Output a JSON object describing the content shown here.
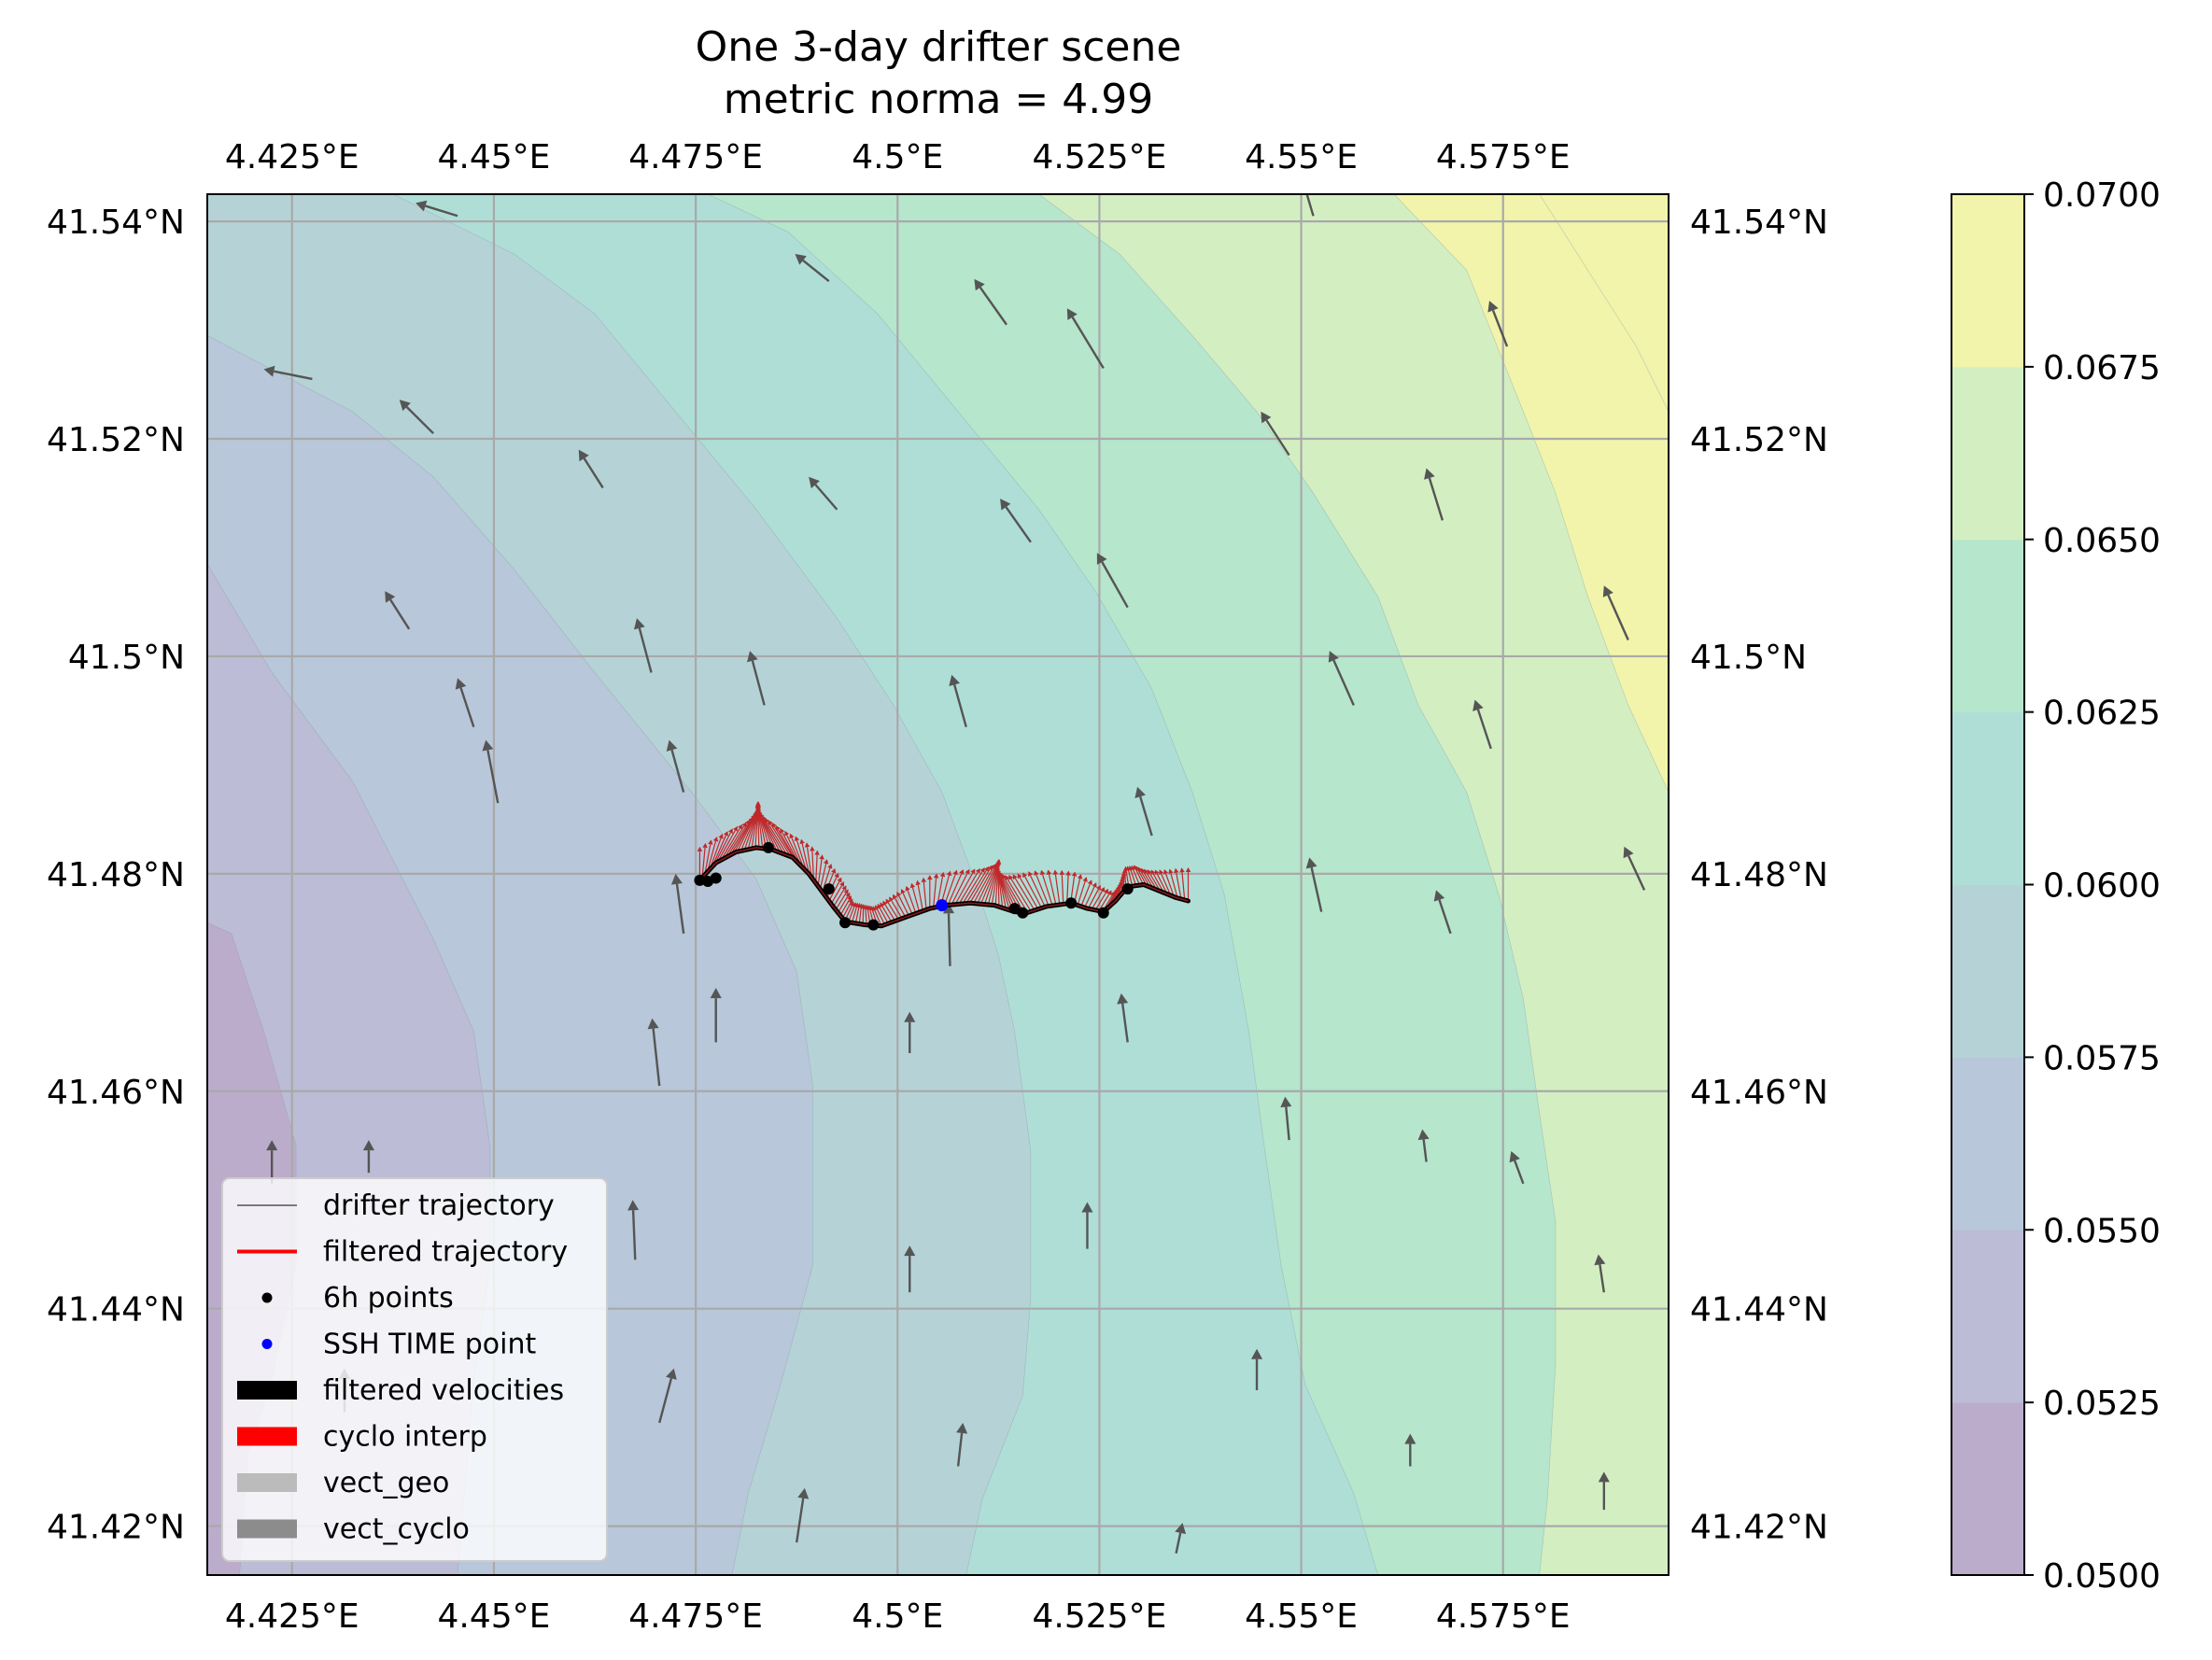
{
  "chart_data": {
    "type": "map",
    "title": "One 3-day drifter scene",
    "subtitle": "metric norma = 4.99",
    "xlim": [
      4.4145,
      4.5955
    ],
    "ylim": [
      41.4155,
      41.5425
    ],
    "lon_ticks": [
      4.425,
      4.45,
      4.475,
      4.5,
      4.525,
      4.55,
      4.575
    ],
    "lon_tick_labels": [
      "4.425°E",
      "4.45°E",
      "4.475°E",
      "4.5°E",
      "4.525°E",
      "4.55°E",
      "4.575°E"
    ],
    "lat_ticks": [
      41.42,
      41.44,
      41.46,
      41.48,
      41.5,
      41.52,
      41.54
    ],
    "lat_tick_labels": [
      "41.42°N",
      "41.44°N",
      "41.46°N",
      "41.48°N",
      "41.5°N",
      "41.52°N",
      "41.54°N"
    ],
    "grid": true,
    "colorbar": {
      "levels": [
        0.05,
        0.0525,
        0.055,
        0.0575,
        0.06,
        0.0625,
        0.065,
        0.0675,
        0.07
      ],
      "tick_labels": [
        "0.0500",
        "0.0525",
        "0.0550",
        "0.0575",
        "0.0600",
        "0.0625",
        "0.0650",
        "0.0675",
        "0.0700"
      ],
      "colors": [
        "#bcaccc",
        "#bcbcd6",
        "#b8c7d9",
        "#b5d3d6",
        "#afded7",
        "#b6e6cc",
        "#d3efc2",
        "#f1f4aa"
      ]
    },
    "contour_bands": [
      {
        "level": 1,
        "boundary": [
          [
            4.4145,
            41.4755
          ],
          [
            4.4175,
            41.4745
          ],
          [
            4.4215,
            41.4655
          ],
          [
            4.4255,
            41.455
          ],
          [
            4.4255,
            41.444
          ],
          [
            4.4225,
            41.4335
          ],
          [
            4.4195,
            41.4265
          ],
          [
            4.4185,
            41.4155
          ]
        ]
      },
      {
        "level": 2,
        "boundary": [
          [
            4.4145,
            41.5085
          ],
          [
            4.4225,
            41.4985
          ],
          [
            4.4325,
            41.4885
          ],
          [
            4.4425,
            41.474
          ],
          [
            4.4475,
            41.4655
          ],
          [
            4.4495,
            41.455
          ],
          [
            4.4495,
            41.444
          ],
          [
            4.4475,
            41.4335
          ],
          [
            4.4455,
            41.4155
          ]
        ]
      },
      {
        "level": 3,
        "boundary": [
          [
            4.4145,
            41.5295
          ],
          [
            4.4325,
            41.5225
          ],
          [
            4.4425,
            41.5165
          ],
          [
            4.4525,
            41.508
          ],
          [
            4.4625,
            41.4985
          ],
          [
            4.4745,
            41.4875
          ],
          [
            4.4825,
            41.4795
          ],
          [
            4.4875,
            41.471
          ],
          [
            4.4895,
            41.4605
          ],
          [
            4.4895,
            41.444
          ],
          [
            4.4855,
            41.433
          ],
          [
            4.4815,
            41.423
          ],
          [
            4.4795,
            41.4155
          ]
        ]
      },
      {
        "level": 4,
        "boundary": [
          [
            4.4375,
            41.5425
          ],
          [
            4.4525,
            41.537
          ],
          [
            4.4625,
            41.5315
          ],
          [
            4.4725,
            41.5225
          ],
          [
            4.4825,
            41.5135
          ],
          [
            4.4925,
            41.5035
          ],
          [
            4.4995,
            41.4955
          ],
          [
            4.5055,
            41.4875
          ],
          [
            4.5095,
            41.4795
          ],
          [
            4.5125,
            41.4725
          ],
          [
            4.5145,
            41.4655
          ],
          [
            4.5165,
            41.4545
          ],
          [
            4.5165,
            41.441
          ],
          [
            4.5155,
            41.432
          ],
          [
            4.5105,
            41.4225
          ],
          [
            4.5085,
            41.4155
          ]
        ]
      },
      {
        "level": 5,
        "boundary": [
          [
            4.4765,
            41.5425
          ],
          [
            4.4865,
            41.539
          ],
          [
            4.4975,
            41.5315
          ],
          [
            4.5075,
            41.5225
          ],
          [
            4.5175,
            41.5135
          ],
          [
            4.5245,
            41.506
          ],
          [
            4.5315,
            41.497
          ],
          [
            4.5365,
            41.4875
          ],
          [
            4.5405,
            41.478
          ],
          [
            4.5435,
            41.4655
          ],
          [
            4.5455,
            41.4545
          ],
          [
            4.5475,
            41.444
          ],
          [
            4.5505,
            41.433
          ],
          [
            4.5565,
            41.423
          ],
          [
            4.5595,
            41.4155
          ]
        ]
      },
      {
        "level": 6,
        "boundary": [
          [
            4.5175,
            41.5425
          ],
          [
            4.5275,
            41.537
          ],
          [
            4.5365,
            41.5295
          ],
          [
            4.5445,
            41.5225
          ],
          [
            4.5515,
            41.515
          ],
          [
            4.5595,
            41.5055
          ],
          [
            4.5645,
            41.4955
          ],
          [
            4.5705,
            41.4875
          ],
          [
            4.5745,
            41.478
          ],
          [
            4.5775,
            41.4685
          ],
          [
            4.5795,
            41.458
          ],
          [
            4.5815,
            41.448
          ],
          [
            4.5815,
            41.435
          ],
          [
            4.5805,
            41.4225
          ],
          [
            4.5795,
            41.4155
          ]
        ]
      },
      {
        "level": 7,
        "boundary": [
          [
            4.5615,
            41.5425
          ],
          [
            4.5705,
            41.5355
          ],
          [
            4.5775,
            41.5225
          ],
          [
            4.5815,
            41.515
          ],
          [
            4.5855,
            41.5055
          ],
          [
            4.5905,
            41.4955
          ],
          [
            4.5955,
            41.4875
          ]
        ]
      },
      {
        "level": 8,
        "boundary": [
          [
            4.5795,
            41.5425
          ],
          [
            4.5855,
            41.5355
          ],
          [
            4.5915,
            41.5285
          ],
          [
            4.5955,
            41.5225
          ]
        ]
      }
    ],
    "quiver": [
      [
        4.4275,
        41.5255,
        -0.006,
        0.0009
      ],
      [
        4.4425,
        41.5205,
        -0.0042,
        0.0031
      ],
      [
        4.4455,
        41.5405,
        -0.0052,
        0.0012
      ],
      [
        4.4395,
        41.5025,
        -0.003,
        0.0035
      ],
      [
        4.4475,
        41.4935,
        -0.002,
        0.0045
      ],
      [
        4.4505,
        41.4865,
        -0.0015,
        0.0058
      ],
      [
        4.4635,
        41.5155,
        -0.003,
        0.0035
      ],
      [
        4.4695,
        41.4985,
        -0.0018,
        0.005
      ],
      [
        4.4735,
        41.4875,
        -0.0018,
        0.0048
      ],
      [
        4.4735,
        41.4745,
        -0.001,
        0.0055
      ],
      [
        4.4705,
        41.4605,
        -0.0009,
        0.0062
      ],
      [
        4.4675,
        41.4445,
        -0.0003,
        0.0055
      ],
      [
        4.4915,
        41.5345,
        -0.0042,
        0.0025
      ],
      [
        4.4925,
        41.5135,
        -0.0035,
        0.003
      ],
      [
        4.4835,
        41.4955,
        -0.0018,
        0.005
      ],
      [
        4.4775,
        41.4645,
        0.0,
        0.005
      ],
      [
        4.4705,
        41.4295,
        0.0018,
        0.005
      ],
      [
        4.4875,
        41.4185,
        0.001,
        0.005
      ],
      [
        4.5135,
        41.5305,
        -0.004,
        0.0042
      ],
      [
        4.5165,
        41.5105,
        -0.0038,
        0.004
      ],
      [
        4.5085,
        41.4935,
        -0.0018,
        0.0048
      ],
      [
        4.5065,
        41.4715,
        -0.0002,
        0.0058
      ],
      [
        4.5015,
        41.4635,
        0.0,
        0.0038
      ],
      [
        4.5015,
        41.4415,
        0.0,
        0.0043
      ],
      [
        4.5075,
        41.4255,
        0.0006,
        0.004
      ],
      [
        4.5255,
        41.5265,
        -0.0045,
        0.0055
      ],
      [
        4.5285,
        41.5045,
        -0.0038,
        0.005
      ],
      [
        4.5315,
        41.4835,
        -0.0018,
        0.0045
      ],
      [
        4.5285,
        41.4645,
        -0.0008,
        0.0045
      ],
      [
        4.5235,
        41.4455,
        0.0,
        0.0043
      ],
      [
        4.5345,
        41.4175,
        0.0008,
        0.0028
      ],
      [
        4.5485,
        41.5185,
        -0.0035,
        0.004
      ],
      [
        4.5565,
        41.4955,
        -0.003,
        0.005
      ],
      [
        4.5525,
        41.4765,
        -0.0015,
        0.005
      ],
      [
        4.5485,
        41.4555,
        -0.0005,
        0.004
      ],
      [
        4.5445,
        41.4325,
        0.0,
        0.0038
      ],
      [
        4.5675,
        41.5125,
        -0.002,
        0.0048
      ],
      [
        4.5735,
        41.4915,
        -0.002,
        0.0045
      ],
      [
        4.5685,
        41.4745,
        -0.0018,
        0.004
      ],
      [
        4.5655,
        41.4535,
        -0.0005,
        0.003
      ],
      [
        4.5635,
        41.4255,
        0.0,
        0.003
      ],
      [
        4.5755,
        41.5285,
        -0.0022,
        0.0042
      ],
      [
        4.5905,
        41.5015,
        -0.003,
        0.005
      ],
      [
        4.5925,
        41.4785,
        -0.0025,
        0.004
      ],
      [
        4.5775,
        41.4515,
        -0.0015,
        0.003
      ],
      [
        4.5875,
        41.4415,
        -0.0007,
        0.0035
      ],
      [
        4.5875,
        41.4215,
        0.0,
        0.0035
      ],
      [
        4.5515,
        41.5405,
        -0.0012,
        0.003
      ],
      [
        4.4225,
        41.4515,
        0.0,
        0.004
      ],
      [
        4.4345,
        41.4525,
        0.0,
        0.003
      ],
      [
        4.4315,
        41.4305,
        0.0,
        0.004
      ]
    ],
    "trajectory": [
      [
        4.4755,
        41.4794
      ],
      [
        4.4775,
        41.481
      ],
      [
        4.48,
        41.482
      ],
      [
        4.4825,
        41.4824
      ],
      [
        4.4845,
        41.4822
      ],
      [
        4.487,
        41.4815
      ],
      [
        4.489,
        41.48
      ],
      [
        4.4905,
        41.4785
      ],
      [
        4.492,
        41.477
      ],
      [
        4.4935,
        41.4756
      ],
      [
        4.496,
        41.4753
      ],
      [
        4.498,
        41.4752
      ],
      [
        4.501,
        41.476
      ],
      [
        4.504,
        41.4768
      ],
      [
        4.506,
        41.4771
      ],
      [
        4.509,
        41.4773
      ],
      [
        4.512,
        41.4771
      ],
      [
        4.5145,
        41.4765
      ],
      [
        4.516,
        41.4764
      ],
      [
        4.5185,
        41.477
      ],
      [
        4.5215,
        41.4773
      ],
      [
        4.5235,
        41.4768
      ],
      [
        4.5255,
        41.4765
      ],
      [
        4.527,
        41.4775
      ],
      [
        4.5285,
        41.4788
      ],
      [
        4.5305,
        41.479
      ],
      [
        4.5325,
        41.4784
      ],
      [
        4.5345,
        41.4778
      ],
      [
        4.536,
        41.4775
      ]
    ],
    "points_6h": [
      [
        4.4755,
        41.4794
      ],
      [
        4.4765,
        41.4793
      ],
      [
        4.4775,
        41.4796
      ],
      [
        4.484,
        41.4824
      ],
      [
        4.4915,
        41.4786
      ],
      [
        4.4935,
        41.4755
      ],
      [
        4.497,
        41.4753
      ],
      [
        4.5145,
        41.4768
      ],
      [
        4.5155,
        41.4764
      ],
      [
        4.5215,
        41.4773
      ],
      [
        4.5255,
        41.4764
      ],
      [
        4.5285,
        41.4786
      ]
    ],
    "ssh_time_point": [
      4.5055,
      41.4771
    ],
    "legend": [
      {
        "label": "drifter trajectory",
        "kind": "thin-line",
        "color": "#555555"
      },
      {
        "label": "filtered trajectory",
        "kind": "line",
        "color": "#ff0000"
      },
      {
        "label": "6h points",
        "kind": "dot",
        "color": "#000000"
      },
      {
        "label": "SSH TIME point",
        "kind": "dot",
        "color": "#0000ff"
      },
      {
        "label": "filtered velocities",
        "kind": "patch",
        "color": "#000000"
      },
      {
        "label": "cyclo interp",
        "kind": "patch",
        "color": "#ff0000"
      },
      {
        "label": "vect_geo",
        "kind": "patch",
        "color": "#bbbbbb"
      },
      {
        "label": "vect_cyclo",
        "kind": "patch",
        "color": "#8c8c8c"
      }
    ],
    "legend_position": "lower-left"
  }
}
